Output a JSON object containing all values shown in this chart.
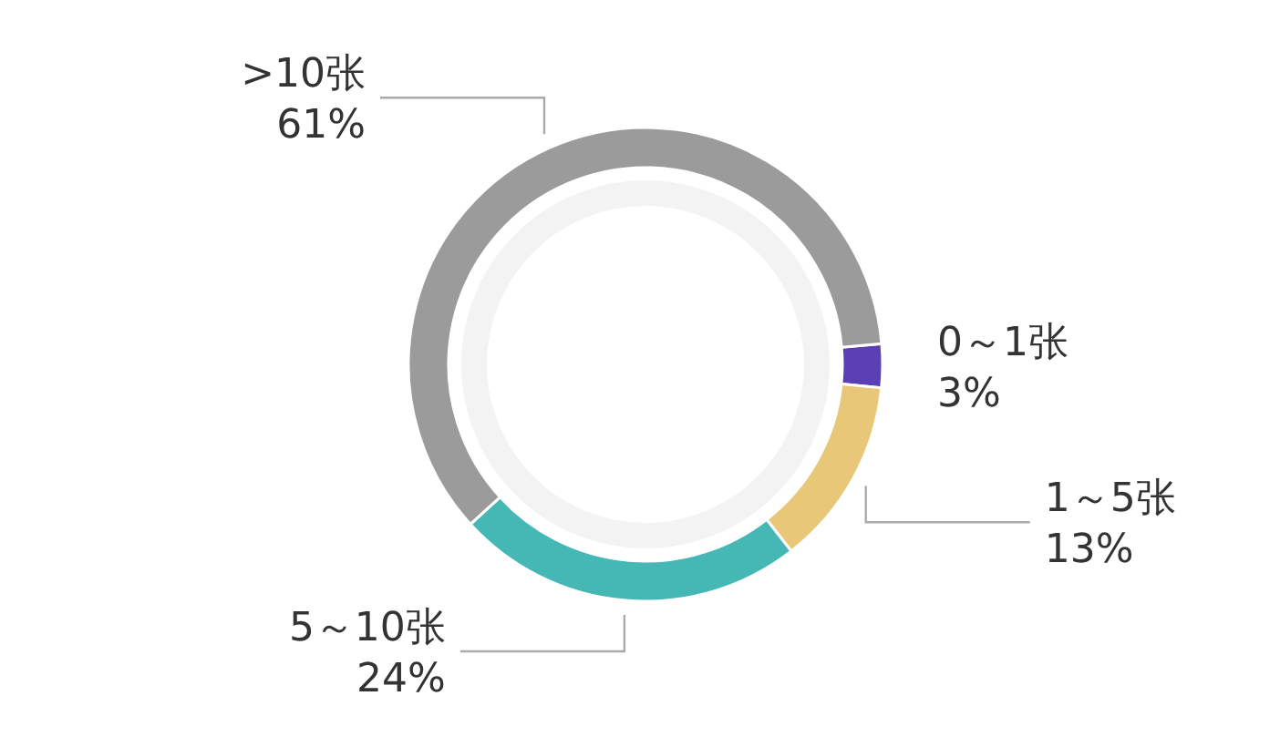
{
  "chart_data": {
    "type": "donut",
    "categories": [
      "0～1张",
      "1～5张",
      "5～10张",
      ">10张"
    ],
    "values": [
      3,
      13,
      24,
      61
    ],
    "colors": [
      "#5a3fb5",
      "#e8c878",
      "#45b8b6",
      "#9b9b9b"
    ],
    "value_labels": [
      "3%",
      "13%",
      "24%",
      "61%"
    ]
  }
}
